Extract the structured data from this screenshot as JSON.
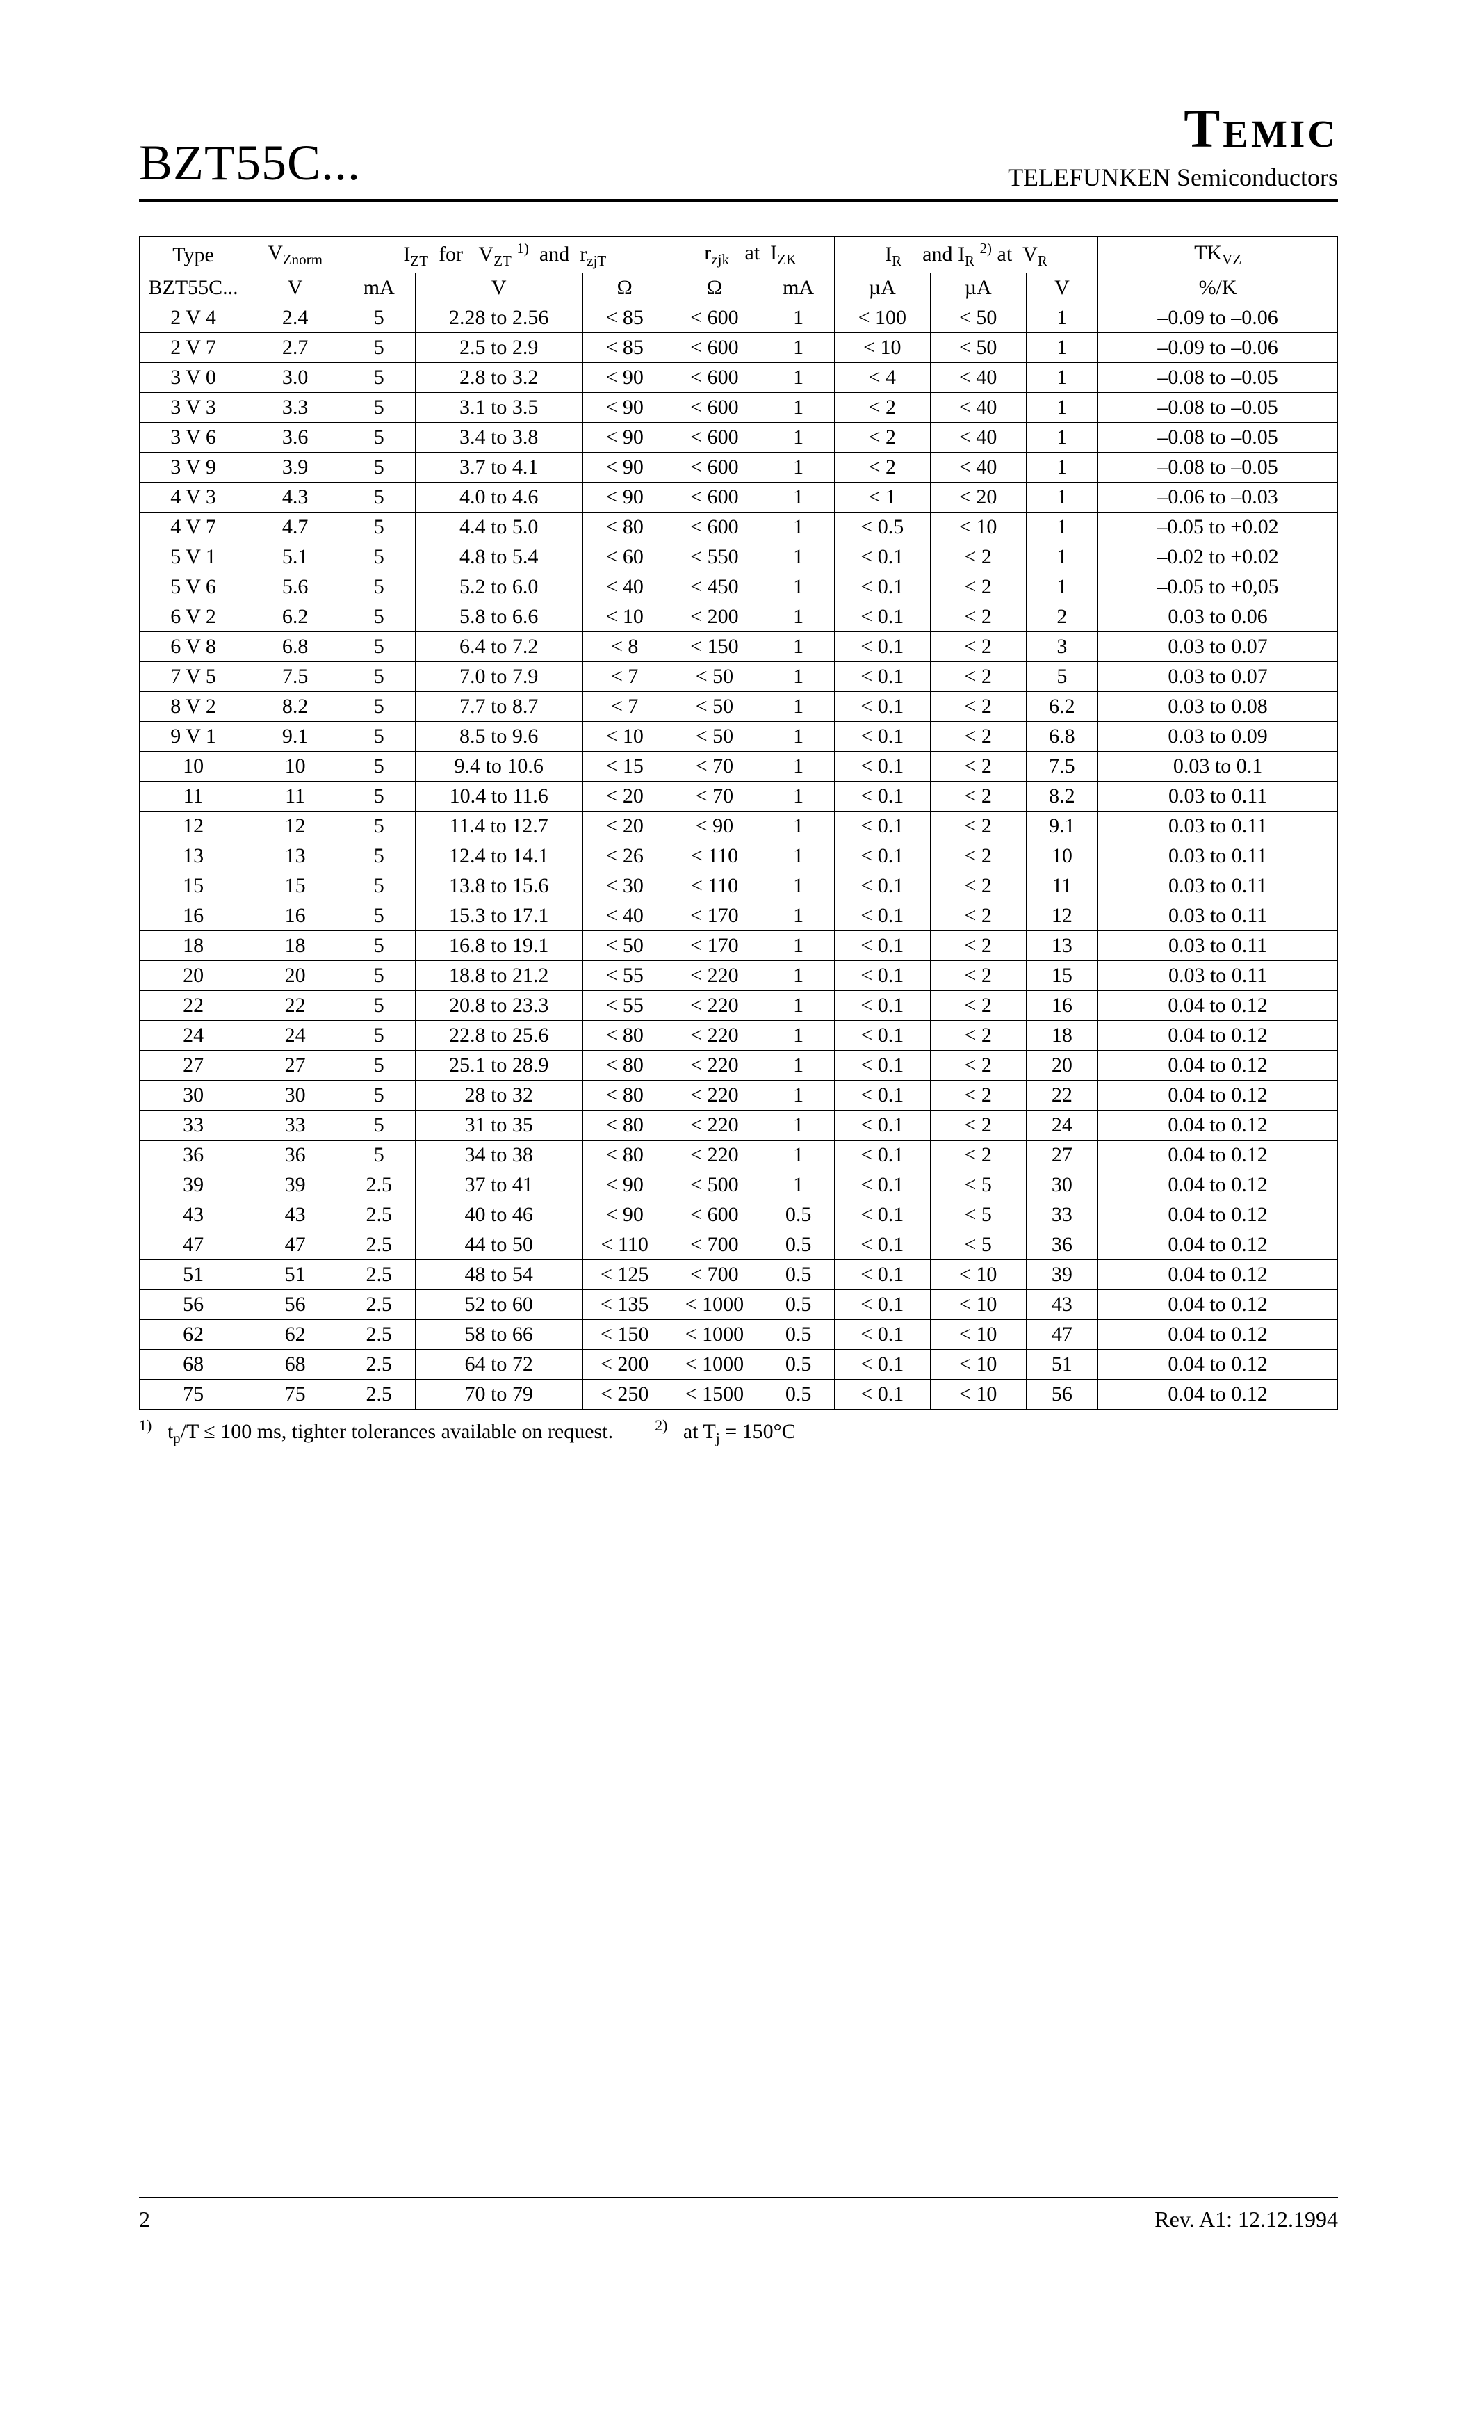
{
  "header": {
    "title_left": "BZT55C...",
    "brand": "Temic",
    "subtitle": "TELEFUNKEN Semiconductors"
  },
  "table": {
    "header_labels": {
      "type": "Type",
      "type_sub": "BZT55C...",
      "vznorm": "V_Znorm",
      "vznorm_unit": "V",
      "izt_group": "I_ZT  for   V_ZT ^1)   and  r_zjT",
      "izt_unit": "mA",
      "vzt_unit": "V",
      "rzjt_unit": "Ω",
      "rzjk_group": "r_zjk   at  I_ZK",
      "rzjk_unit": "Ω",
      "izk_unit": "mA",
      "ir_group": "I_R    and I_R ^2) at  V_R",
      "ir1_unit": "µA",
      "ir2_unit": "µA",
      "vr_unit": "V",
      "tkvz": "TK_VZ",
      "tkvz_unit": "%/K"
    },
    "rows": [
      {
        "type": "2 V 4",
        "vz": "2.4",
        "izt": "5",
        "vzt": "2.28 to 2.56",
        "rzjt": "< 85",
        "rzjk": "< 600",
        "izk": "1",
        "ir1": "< 100",
        "ir2": "< 50",
        "vr": "1",
        "tk": "–0.09 to –0.06"
      },
      {
        "type": "2 V 7",
        "vz": "2.7",
        "izt": "5",
        "vzt": "2.5 to 2.9",
        "rzjt": "< 85",
        "rzjk": "< 600",
        "izk": "1",
        "ir1": "< 10",
        "ir2": "< 50",
        "vr": "1",
        "tk": "–0.09 to –0.06"
      },
      {
        "type": "3 V 0",
        "vz": "3.0",
        "izt": "5",
        "vzt": "2.8 to 3.2",
        "rzjt": "< 90",
        "rzjk": "< 600",
        "izk": "1",
        "ir1": "< 4",
        "ir2": "< 40",
        "vr": "1",
        "tk": "–0.08 to –0.05"
      },
      {
        "type": "3 V 3",
        "vz": "3.3",
        "izt": "5",
        "vzt": "3.1 to 3.5",
        "rzjt": "< 90",
        "rzjk": "< 600",
        "izk": "1",
        "ir1": "< 2",
        "ir2": "< 40",
        "vr": "1",
        "tk": "–0.08 to –0.05"
      },
      {
        "type": "3 V 6",
        "vz": "3.6",
        "izt": "5",
        "vzt": "3.4 to 3.8",
        "rzjt": "< 90",
        "rzjk": "< 600",
        "izk": "1",
        "ir1": "< 2",
        "ir2": "< 40",
        "vr": "1",
        "tk": "–0.08 to –0.05"
      },
      {
        "type": "3 V 9",
        "vz": "3.9",
        "izt": "5",
        "vzt": "3.7 to 4.1",
        "rzjt": "< 90",
        "rzjk": "< 600",
        "izk": "1",
        "ir1": "< 2",
        "ir2": "< 40",
        "vr": "1",
        "tk": "–0.08 to –0.05"
      },
      {
        "type": "4 V 3",
        "vz": "4.3",
        "izt": "5",
        "vzt": "4.0 to 4.6",
        "rzjt": "< 90",
        "rzjk": "< 600",
        "izk": "1",
        "ir1": "< 1",
        "ir2": "< 20",
        "vr": "1",
        "tk": "–0.06 to –0.03"
      },
      {
        "type": "4 V 7",
        "vz": "4.7",
        "izt": "5",
        "vzt": "4.4 to 5.0",
        "rzjt": "< 80",
        "rzjk": "< 600",
        "izk": "1",
        "ir1": "< 0.5",
        "ir2": "< 10",
        "vr": "1",
        "tk": "–0.05 to +0.02"
      },
      {
        "type": "5 V 1",
        "vz": "5.1",
        "izt": "5",
        "vzt": "4.8 to 5.4",
        "rzjt": "< 60",
        "rzjk": "< 550",
        "izk": "1",
        "ir1": "< 0.1",
        "ir2": "< 2",
        "vr": "1",
        "tk": "–0.02 to +0.02"
      },
      {
        "type": "5 V 6",
        "vz": "5.6",
        "izt": "5",
        "vzt": "5.2 to 6.0",
        "rzjt": "< 40",
        "rzjk": "< 450",
        "izk": "1",
        "ir1": "< 0.1",
        "ir2": "< 2",
        "vr": "1",
        "tk": "–0.05 to +0,05"
      },
      {
        "type": "6 V 2",
        "vz": "6.2",
        "izt": "5",
        "vzt": "5.8 to 6.6",
        "rzjt": "< 10",
        "rzjk": "< 200",
        "izk": "1",
        "ir1": "< 0.1",
        "ir2": "< 2",
        "vr": "2",
        "tk": "0.03 to 0.06"
      },
      {
        "type": "6 V 8",
        "vz": "6.8",
        "izt": "5",
        "vzt": "6.4 to 7.2",
        "rzjt": "< 8",
        "rzjk": "< 150",
        "izk": "1",
        "ir1": "< 0.1",
        "ir2": "< 2",
        "vr": "3",
        "tk": "0.03 to 0.07"
      },
      {
        "type": "7 V 5",
        "vz": "7.5",
        "izt": "5",
        "vzt": "7.0 to 7.9",
        "rzjt": "< 7",
        "rzjk": "< 50",
        "izk": "1",
        "ir1": "< 0.1",
        "ir2": "< 2",
        "vr": "5",
        "tk": "0.03 to 0.07"
      },
      {
        "type": "8 V 2",
        "vz": "8.2",
        "izt": "5",
        "vzt": "7.7 to 8.7",
        "rzjt": "< 7",
        "rzjk": "< 50",
        "izk": "1",
        "ir1": "< 0.1",
        "ir2": "< 2",
        "vr": "6.2",
        "tk": "0.03 to 0.08"
      },
      {
        "type": "9 V 1",
        "vz": "9.1",
        "izt": "5",
        "vzt": "8.5 to 9.6",
        "rzjt": "< 10",
        "rzjk": "< 50",
        "izk": "1",
        "ir1": "< 0.1",
        "ir2": "< 2",
        "vr": "6.8",
        "tk": "0.03 to 0.09"
      },
      {
        "type": "10",
        "vz": "10",
        "izt": "5",
        "vzt": "9.4 to 10.6",
        "rzjt": "< 15",
        "rzjk": "< 70",
        "izk": "1",
        "ir1": "< 0.1",
        "ir2": "< 2",
        "vr": "7.5",
        "tk": "0.03 to 0.1"
      },
      {
        "type": "11",
        "vz": "11",
        "izt": "5",
        "vzt": "10.4 to 11.6",
        "rzjt": "< 20",
        "rzjk": "< 70",
        "izk": "1",
        "ir1": "< 0.1",
        "ir2": "< 2",
        "vr": "8.2",
        "tk": "0.03 to 0.11"
      },
      {
        "type": "12",
        "vz": "12",
        "izt": "5",
        "vzt": "11.4 to 12.7",
        "rzjt": "< 20",
        "rzjk": "< 90",
        "izk": "1",
        "ir1": "< 0.1",
        "ir2": "< 2",
        "vr": "9.1",
        "tk": "0.03 to 0.11"
      },
      {
        "type": "13",
        "vz": "13",
        "izt": "5",
        "vzt": "12.4 to 14.1",
        "rzjt": "< 26",
        "rzjk": "< 110",
        "izk": "1",
        "ir1": "< 0.1",
        "ir2": "< 2",
        "vr": "10",
        "tk": "0.03 to 0.11"
      },
      {
        "type": "15",
        "vz": "15",
        "izt": "5",
        "vzt": "13.8 to 15.6",
        "rzjt": "< 30",
        "rzjk": "< 110",
        "izk": "1",
        "ir1": "< 0.1",
        "ir2": "< 2",
        "vr": "11",
        "tk": "0.03 to 0.11"
      },
      {
        "type": "16",
        "vz": "16",
        "izt": "5",
        "vzt": "15.3 to 17.1",
        "rzjt": "< 40",
        "rzjk": "< 170",
        "izk": "1",
        "ir1": "< 0.1",
        "ir2": "< 2",
        "vr": "12",
        "tk": "0.03 to 0.11"
      },
      {
        "type": "18",
        "vz": "18",
        "izt": "5",
        "vzt": "16.8 to 19.1",
        "rzjt": "< 50",
        "rzjk": "< 170",
        "izk": "1",
        "ir1": "< 0.1",
        "ir2": "< 2",
        "vr": "13",
        "tk": "0.03 to 0.11"
      },
      {
        "type": "20",
        "vz": "20",
        "izt": "5",
        "vzt": "18.8 to 21.2",
        "rzjt": "< 55",
        "rzjk": "< 220",
        "izk": "1",
        "ir1": "< 0.1",
        "ir2": "< 2",
        "vr": "15",
        "tk": "0.03 to 0.11"
      },
      {
        "type": "22",
        "vz": "22",
        "izt": "5",
        "vzt": "20.8 to 23.3",
        "rzjt": "< 55",
        "rzjk": "< 220",
        "izk": "1",
        "ir1": "< 0.1",
        "ir2": "< 2",
        "vr": "16",
        "tk": "0.04 to 0.12"
      },
      {
        "type": "24",
        "vz": "24",
        "izt": "5",
        "vzt": "22.8 to 25.6",
        "rzjt": "< 80",
        "rzjk": "< 220",
        "izk": "1",
        "ir1": "< 0.1",
        "ir2": "< 2",
        "vr": "18",
        "tk": "0.04 to 0.12"
      },
      {
        "type": "27",
        "vz": "27",
        "izt": "5",
        "vzt": "25.1 to 28.9",
        "rzjt": "< 80",
        "rzjk": "< 220",
        "izk": "1",
        "ir1": "< 0.1",
        "ir2": "< 2",
        "vr": "20",
        "tk": "0.04 to 0.12"
      },
      {
        "type": "30",
        "vz": "30",
        "izt": "5",
        "vzt": "28 to 32",
        "rzjt": "< 80",
        "rzjk": "< 220",
        "izk": "1",
        "ir1": "< 0.1",
        "ir2": "< 2",
        "vr": "22",
        "tk": "0.04 to 0.12"
      },
      {
        "type": "33",
        "vz": "33",
        "izt": "5",
        "vzt": "31 to 35",
        "rzjt": "< 80",
        "rzjk": "< 220",
        "izk": "1",
        "ir1": "< 0.1",
        "ir2": "< 2",
        "vr": "24",
        "tk": "0.04 to 0.12"
      },
      {
        "type": "36",
        "vz": "36",
        "izt": "5",
        "vzt": "34 to 38",
        "rzjt": "< 80",
        "rzjk": "< 220",
        "izk": "1",
        "ir1": "< 0.1",
        "ir2": "< 2",
        "vr": "27",
        "tk": "0.04 to 0.12"
      },
      {
        "type": "39",
        "vz": "39",
        "izt": "2.5",
        "vzt": "37 to 41",
        "rzjt": "< 90",
        "rzjk": "< 500",
        "izk": "1",
        "ir1": "< 0.1",
        "ir2": "< 5",
        "vr": "30",
        "tk": "0.04 to 0.12"
      },
      {
        "type": "43",
        "vz": "43",
        "izt": "2.5",
        "vzt": "40 to 46",
        "rzjt": "< 90",
        "rzjk": "< 600",
        "izk": "0.5",
        "ir1": "< 0.1",
        "ir2": "< 5",
        "vr": "33",
        "tk": "0.04 to 0.12"
      },
      {
        "type": "47",
        "vz": "47",
        "izt": "2.5",
        "vzt": "44 to 50",
        "rzjt": "< 110",
        "rzjk": "< 700",
        "izk": "0.5",
        "ir1": "< 0.1",
        "ir2": "< 5",
        "vr": "36",
        "tk": "0.04 to 0.12"
      },
      {
        "type": "51",
        "vz": "51",
        "izt": "2.5",
        "vzt": "48 to 54",
        "rzjt": "< 125",
        "rzjk": "< 700",
        "izk": "0.5",
        "ir1": "< 0.1",
        "ir2": "< 10",
        "vr": "39",
        "tk": "0.04 to 0.12"
      },
      {
        "type": "56",
        "vz": "56",
        "izt": "2.5",
        "vzt": "52 to 60",
        "rzjt": "< 135",
        "rzjk": "< 1000",
        "izk": "0.5",
        "ir1": "< 0.1",
        "ir2": "< 10",
        "vr": "43",
        "tk": "0.04 to 0.12"
      },
      {
        "type": "62",
        "vz": "62",
        "izt": "2.5",
        "vzt": "58 to 66",
        "rzjt": "< 150",
        "rzjk": "< 1000",
        "izk": "0.5",
        "ir1": "< 0.1",
        "ir2": "< 10",
        "vr": "47",
        "tk": "0.04 to 0.12"
      },
      {
        "type": "68",
        "vz": "68",
        "izt": "2.5",
        "vzt": "64 to 72",
        "rzjt": "< 200",
        "rzjk": "< 1000",
        "izk": "0.5",
        "ir1": "< 0.1",
        "ir2": "< 10",
        "vr": "51",
        "tk": "0.04 to 0.12"
      },
      {
        "type": "75",
        "vz": "75",
        "izt": "2.5",
        "vzt": "70 to 79",
        "rzjt": "< 250",
        "rzjk": "< 1500",
        "izk": "0.5",
        "ir1": "< 0.1",
        "ir2": "< 10",
        "vr": "56",
        "tk": "0.04 to 0.12"
      }
    ],
    "col_widths": [
      "9%",
      "8%",
      "6%",
      "14%",
      "7%",
      "8%",
      "6%",
      "8%",
      "8%",
      "6%",
      "20%"
    ]
  },
  "footnotes": {
    "fn1": "t_p/T ≤ 100 ms, tighter tolerances available on request.",
    "fn2": "at T_j = 150°C"
  },
  "footer": {
    "page": "2",
    "rev": "Rev. A1: 12.12.1994"
  }
}
